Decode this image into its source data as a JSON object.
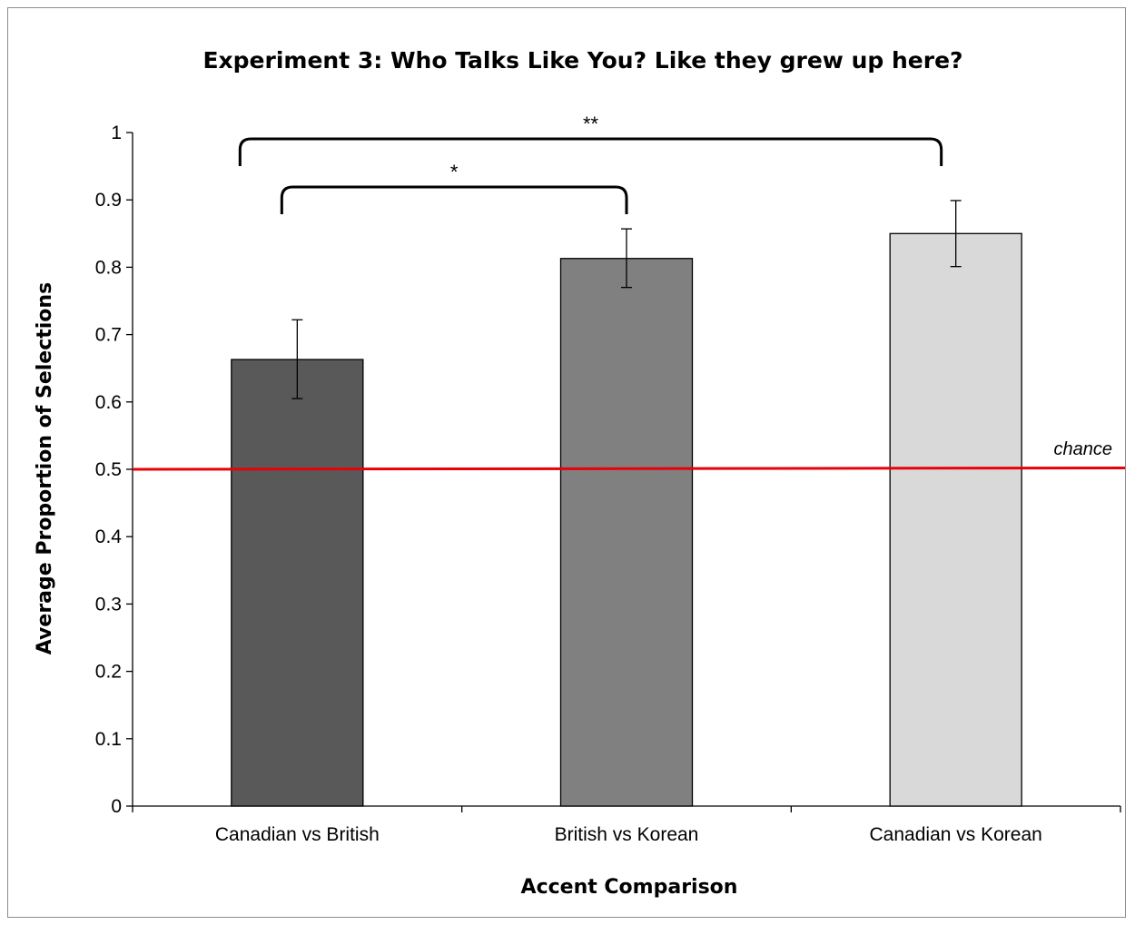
{
  "chart_data": {
    "type": "bar",
    "title": "Experiment 3: Who Talks Like You? Like they grew up here?",
    "xlabel": "Accent Comparison",
    "ylabel": "Average Proportion of Selections",
    "ylim": [
      0,
      1
    ],
    "yticks": [
      "0",
      "0.1",
      "0.2",
      "0.3",
      "0.4",
      "0.5",
      "0.6",
      "0.7",
      "0.8",
      "0.9",
      "1"
    ],
    "categories": [
      "Canadian vs British",
      "British vs Korean",
      "Canadian vs Korean"
    ],
    "values": [
      0.663,
      0.813,
      0.85
    ],
    "error_low": [
      0.605,
      0.77,
      0.801
    ],
    "error_high": [
      0.722,
      0.857,
      0.899
    ],
    "bar_colors": [
      "#595959",
      "#808080",
      "#d9d9d9"
    ],
    "grid": false,
    "reference_line": {
      "value": 0.5,
      "label": "chance",
      "color": "#e8000b"
    },
    "significance": [
      {
        "from": 0,
        "to": 1,
        "label": "*"
      },
      {
        "from": 0,
        "to": 2,
        "label": "**"
      }
    ]
  }
}
